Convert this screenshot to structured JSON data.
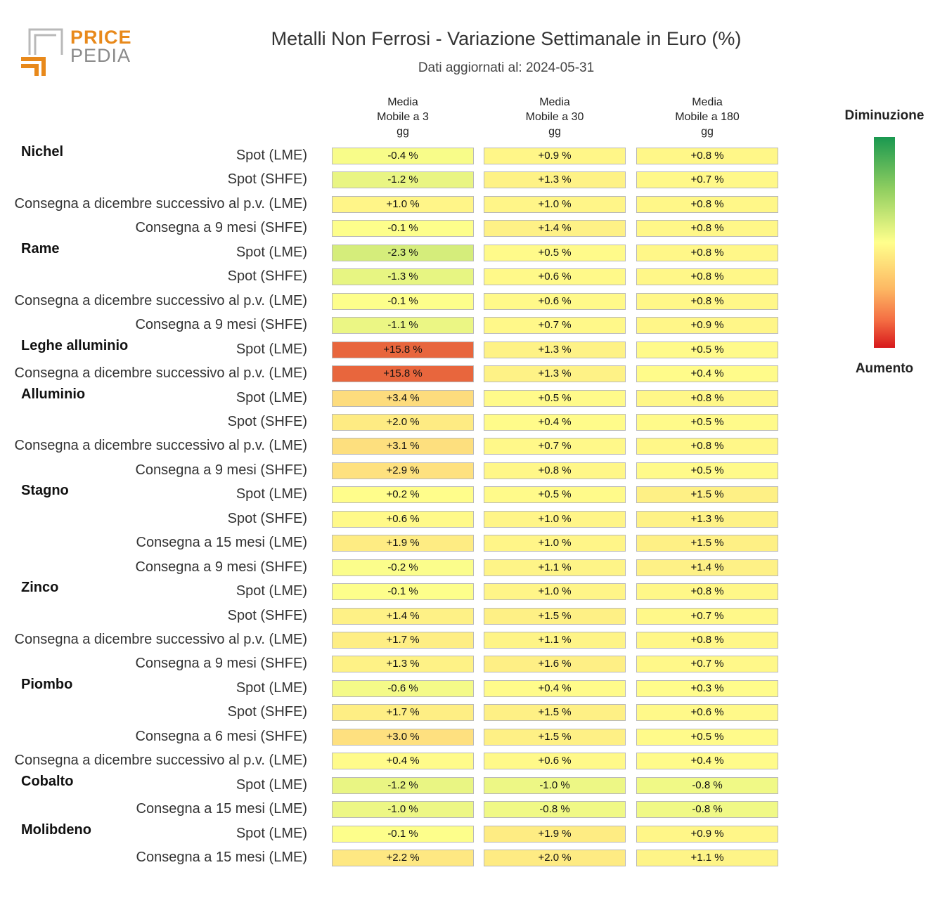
{
  "logo": {
    "line1": "PRICE",
    "line2": "PEDIA"
  },
  "title": "Metalli Non Ferrosi - Variazione Settimanale in Euro (%)",
  "subtitle": "Dati aggiornati al: 2024-05-31",
  "legend": {
    "top_label": "Diminuzione",
    "bottom_label": "Aumento",
    "colors": [
      "#1a9850",
      "#91cf60",
      "#ffff8c",
      "#fdb863",
      "#f46d43",
      "#d7191c"
    ]
  },
  "chart_data": {
    "type": "table",
    "title": "Metalli Non Ferrosi - Variazione Settimanale in Euro (%)",
    "columns": [
      {
        "line1": "Media",
        "line2": "Mobile a 3",
        "line3": "gg"
      },
      {
        "line1": "Media",
        "line2": "Mobile a 30",
        "line3": "gg"
      },
      {
        "line1": "Media",
        "line2": "Mobile a 180",
        "line3": "gg"
      }
    ],
    "groups": [
      {
        "name": "Nichel",
        "rows": [
          {
            "label": "Spot (LME)",
            "values": [
              "-0.4 %",
              "+0.9 %",
              "+0.8 %"
            ]
          },
          {
            "label": "Spot (SHFE)",
            "values": [
              "-1.2 %",
              "+1.3 %",
              "+0.7 %"
            ]
          },
          {
            "label": "Consegna a dicembre successivo al p.v. (LME)",
            "values": [
              "+1.0 %",
              "+1.0 %",
              "+0.8 %"
            ]
          },
          {
            "label": "Consegna a 9 mesi (SHFE)",
            "values": [
              "-0.1 %",
              "+1.4 %",
              "+0.8 %"
            ]
          }
        ]
      },
      {
        "name": "Rame",
        "rows": [
          {
            "label": "Spot (LME)",
            "values": [
              "-2.3 %",
              "+0.5 %",
              "+0.8 %"
            ]
          },
          {
            "label": "Spot (SHFE)",
            "values": [
              "-1.3 %",
              "+0.6 %",
              "+0.8 %"
            ]
          },
          {
            "label": "Consegna a dicembre successivo al p.v. (LME)",
            "values": [
              "-0.1 %",
              "+0.6 %",
              "+0.8 %"
            ]
          },
          {
            "label": "Consegna a 9 mesi (SHFE)",
            "values": [
              "-1.1 %",
              "+0.7 %",
              "+0.9 %"
            ]
          }
        ]
      },
      {
        "name": "Leghe alluminio",
        "rows": [
          {
            "label": "Spot (LME)",
            "values": [
              "+15.8 %",
              "+1.3 %",
              "+0.5 %"
            ]
          },
          {
            "label": "Consegna a dicembre successivo al p.v. (LME)",
            "values": [
              "+15.8 %",
              "+1.3 %",
              "+0.4 %"
            ]
          }
        ]
      },
      {
        "name": "Alluminio",
        "rows": [
          {
            "label": "Spot (LME)",
            "values": [
              "+3.4 %",
              "+0.5 %",
              "+0.8 %"
            ]
          },
          {
            "label": "Spot (SHFE)",
            "values": [
              "+2.0 %",
              "+0.4 %",
              "+0.5 %"
            ]
          },
          {
            "label": "Consegna a dicembre successivo al p.v. (LME)",
            "values": [
              "+3.1 %",
              "+0.7 %",
              "+0.8 %"
            ]
          },
          {
            "label": "Consegna a 9 mesi (SHFE)",
            "values": [
              "+2.9 %",
              "+0.8 %",
              "+0.5 %"
            ]
          }
        ]
      },
      {
        "name": "Stagno",
        "rows": [
          {
            "label": "Spot (LME)",
            "values": [
              "+0.2 %",
              "+0.5 %",
              "+1.5 %"
            ]
          },
          {
            "label": "Spot (SHFE)",
            "values": [
              "+0.6 %",
              "+1.0 %",
              "+1.3 %"
            ]
          },
          {
            "label": "Consegna a 15 mesi (LME)",
            "values": [
              "+1.9 %",
              "+1.0 %",
              "+1.5 %"
            ]
          },
          {
            "label": "Consegna a 9 mesi (SHFE)",
            "values": [
              "-0.2 %",
              "+1.1 %",
              "+1.4 %"
            ]
          }
        ]
      },
      {
        "name": "Zinco",
        "rows": [
          {
            "label": "Spot (LME)",
            "values": [
              "-0.1 %",
              "+1.0 %",
              "+0.8 %"
            ]
          },
          {
            "label": "Spot (SHFE)",
            "values": [
              "+1.4 %",
              "+1.5 %",
              "+0.7 %"
            ]
          },
          {
            "label": "Consegna a dicembre successivo al p.v. (LME)",
            "values": [
              "+1.7 %",
              "+1.1 %",
              "+0.8 %"
            ]
          },
          {
            "label": "Consegna a 9 mesi (SHFE)",
            "values": [
              "+1.3 %",
              "+1.6 %",
              "+0.7 %"
            ]
          }
        ]
      },
      {
        "name": "Piombo",
        "rows": [
          {
            "label": "Spot (LME)",
            "values": [
              "-0.6 %",
              "+0.4 %",
              "+0.3 %"
            ]
          },
          {
            "label": "Spot (SHFE)",
            "values": [
              "+1.7 %",
              "+1.5 %",
              "+0.6 %"
            ]
          },
          {
            "label": "Consegna a 6 mesi (SHFE)",
            "values": [
              "+3.0 %",
              "+1.5 %",
              "+0.5 %"
            ]
          },
          {
            "label": "Consegna a dicembre successivo al p.v. (LME)",
            "values": [
              "+0.4 %",
              "+0.6 %",
              "+0.4 %"
            ]
          }
        ]
      },
      {
        "name": "Cobalto",
        "rows": [
          {
            "label": "Spot (LME)",
            "values": [
              "-1.2 %",
              "-1.0 %",
              "-0.8 %"
            ]
          },
          {
            "label": "Consegna a 15 mesi (LME)",
            "values": [
              "-1.0 %",
              "-0.8 %",
              "-0.8 %"
            ]
          }
        ]
      },
      {
        "name": "Molibdeno",
        "rows": [
          {
            "label": "Spot (LME)",
            "values": [
              "-0.1 %",
              "+1.9 %",
              "+0.9 %"
            ]
          },
          {
            "label": "Consegna a 15 mesi (LME)",
            "values": [
              "+2.2 %",
              "+2.0 %",
              "+1.1 %"
            ]
          }
        ]
      }
    ]
  }
}
